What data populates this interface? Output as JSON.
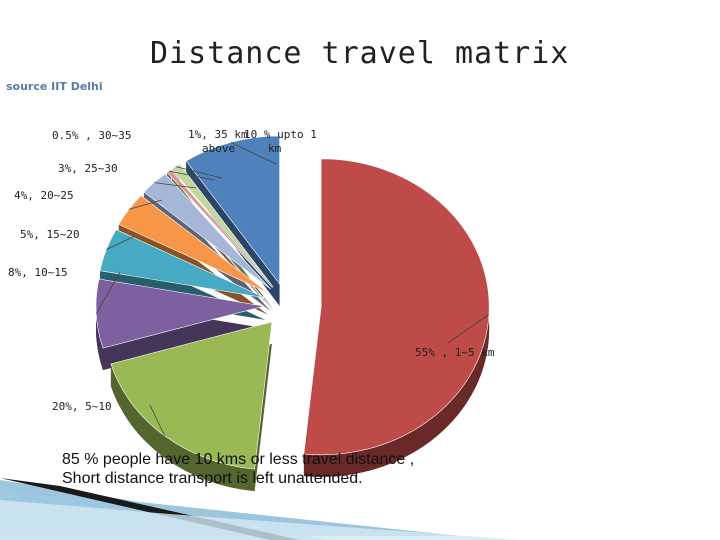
{
  "header": {
    "title": "Distance travel matrix",
    "source": "source IIT Delhi"
  },
  "caption": {
    "line1": "85 % people have 10 kms or less travel distance ,",
    "line2": "Short distance transport is  left unattended."
  },
  "chart_data": {
    "type": "pie",
    "title": "Distance travel matrix",
    "exploded": true,
    "three_d": true,
    "slices": [
      {
        "label": "55% , 1~5 km",
        "value": 55,
        "color": "#be4b48"
      },
      {
        "label": "20%, 5~10",
        "value": 20,
        "color": "#98b954"
      },
      {
        "label": "8%, 10~15",
        "value": 8,
        "color": "#7d60a0"
      },
      {
        "label": "5%, 15~20",
        "value": 5,
        "color": "#46aac5"
      },
      {
        "label": "4%, 20~25",
        "value": 4,
        "color": "#f79646"
      },
      {
        "label": "3%, 25~30",
        "value": 3,
        "color": "#a5b6d6"
      },
      {
        "label": "0.5% , 30~35",
        "value": 0.5,
        "color": "#d99694"
      },
      {
        "label": "1%, 35 km above",
        "value": 1,
        "color": "#c3d69b"
      },
      {
        "label": "10 % upto 1 km",
        "value": 10,
        "color": "#4f81bd"
      }
    ]
  }
}
